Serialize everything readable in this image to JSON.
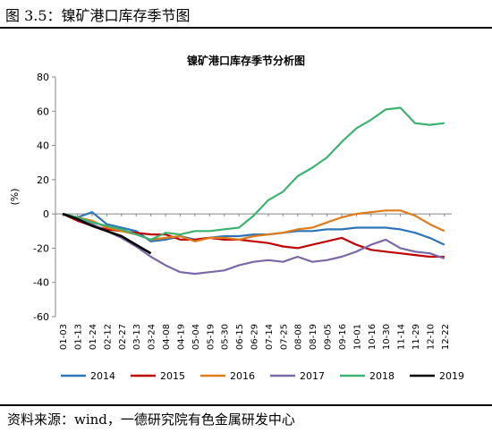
{
  "header": {
    "figure_caption": "图 3.5：镍矿港口库存季节图"
  },
  "footer": {
    "source": "资料来源：wind，一德研究院有色金属研发中心"
  },
  "chart_data": {
    "type": "line",
    "title": "镍矿港口库存季节分析图",
    "ylabel": "(%)",
    "xlabel": "",
    "ylim": [
      -60,
      80
    ],
    "yticks": [
      -60,
      -40,
      -20,
      0,
      20,
      40,
      60,
      80
    ],
    "grid": false,
    "legend_position": "bottom",
    "categories": [
      "01-03",
      "01-13",
      "01-24",
      "02-12",
      "02-27",
      "03-13",
      "03-24",
      "04-08",
      "04-19",
      "05-04",
      "05-19",
      "05-30",
      "06-15",
      "06-29",
      "07-14",
      "07-25",
      "08-08",
      "08-19",
      "09-05",
      "09-16",
      "10-01",
      "10-16",
      "10-30",
      "11-14",
      "11-29",
      "12-10",
      "12-22"
    ],
    "x": [
      "01-03",
      "01-13",
      "01-24",
      "02-12",
      "02-27",
      "03-13",
      "03-24",
      "04-08",
      "04-19",
      "05-04",
      "05-19",
      "05-30",
      "06-15",
      "06-29",
      "07-14",
      "07-25",
      "08-08",
      "08-19",
      "09-05",
      "09-16",
      "10-01",
      "10-16",
      "10-30",
      "11-14",
      "11-29",
      "12-10",
      "12-22"
    ],
    "series": [
      {
        "name": "2014",
        "color": "#2e75b6",
        "x": [
          "01-03",
          "01-13",
          "01-24",
          "02-12",
          "02-27",
          "03-13",
          "03-24",
          "04-08",
          "04-19",
          "05-04",
          "05-19",
          "05-30",
          "06-15",
          "06-29",
          "07-14",
          "07-25",
          "08-08",
          "08-19",
          "09-05",
          "09-16",
          "10-01",
          "10-16",
          "10-30",
          "11-14",
          "11-29",
          "12-10",
          "12-22"
        ],
        "values": [
          0,
          -2,
          1,
          -6,
          -8,
          -10,
          -16,
          -15,
          -13,
          -15,
          -14,
          -13,
          -13,
          -12,
          -12,
          -11,
          -10,
          -10,
          -9,
          -9,
          -8,
          -8,
          -8,
          -9,
          -11,
          -14,
          -18
        ]
      },
      {
        "name": "2015",
        "color": "#c00000",
        "x": [
          "01-03",
          "01-13",
          "01-24",
          "02-12",
          "02-27",
          "03-13",
          "03-24",
          "04-08",
          "04-19",
          "05-04",
          "05-19",
          "05-30",
          "06-15",
          "06-29",
          "07-14",
          "07-25",
          "08-08",
          "08-19",
          "09-05",
          "09-16",
          "10-01",
          "10-16",
          "10-30",
          "11-14",
          "11-29",
          "12-10",
          "12-22"
        ],
        "values": [
          0,
          -4,
          -7,
          -9,
          -10,
          -11,
          -12,
          -12,
          -15,
          -15,
          -14,
          -15,
          -15,
          -16,
          -17,
          -19,
          -20,
          -18,
          -16,
          -14,
          -18,
          -21,
          -22,
          -23,
          -24,
          -25,
          -25
        ]
      },
      {
        "name": "2016",
        "color": "#e07b1a",
        "x": [
          "01-03",
          "01-13",
          "01-24",
          "02-12",
          "02-27",
          "03-13",
          "03-24",
          "04-08",
          "04-19",
          "05-04",
          "05-19",
          "05-30",
          "06-15",
          "06-29",
          "07-14",
          "07-25",
          "08-08",
          "08-19",
          "09-05",
          "09-16",
          "10-01",
          "10-16",
          "10-30",
          "11-14",
          "11-29",
          "12-10",
          "12-22"
        ],
        "values": [
          0,
          -2,
          -4,
          -8,
          -10,
          -12,
          -15,
          -14,
          -13,
          -16,
          -14,
          -14,
          -15,
          -13,
          -12,
          -11,
          -9,
          -8,
          -5,
          -2,
          0,
          1,
          2,
          2,
          -1,
          -6,
          -10
        ]
      },
      {
        "name": "2017",
        "color": "#7b68a6",
        "x": [
          "01-03",
          "01-13",
          "01-24",
          "02-12",
          "02-27",
          "03-13",
          "03-24",
          "04-08",
          "04-19",
          "05-04",
          "05-19",
          "05-30",
          "06-15",
          "06-29",
          "07-14",
          "07-25",
          "08-08",
          "08-19",
          "09-05",
          "09-16",
          "10-01",
          "10-16",
          "10-30",
          "11-14",
          "11-29",
          "12-10",
          "12-22"
        ],
        "values": [
          0,
          -3,
          -6,
          -10,
          -14,
          -19,
          -25,
          -30,
          -34,
          -35,
          -34,
          -33,
          -30,
          -28,
          -27,
          -28,
          -25,
          -28,
          -27,
          -25,
          -22,
          -18,
          -15,
          -20,
          -22,
          -23,
          -26
        ]
      },
      {
        "name": "2018",
        "color": "#3cb371",
        "x": [
          "01-03",
          "01-13",
          "01-24",
          "02-12",
          "02-27",
          "03-13",
          "03-24",
          "04-08",
          "04-19",
          "05-04",
          "05-19",
          "05-30",
          "06-15",
          "06-29",
          "07-14",
          "07-25",
          "08-08",
          "08-19",
          "09-05",
          "09-16",
          "10-01",
          "10-16",
          "10-30",
          "11-14",
          "11-29",
          "12-10",
          "12-22"
        ],
        "values": [
          0,
          -2,
          -5,
          -7,
          -9,
          -12,
          -15,
          -11,
          -12,
          -10,
          -10,
          -9,
          -8,
          -1,
          8,
          13,
          22,
          27,
          33,
          42,
          50,
          55,
          61,
          62,
          53,
          52,
          53
        ]
      },
      {
        "name": "2019",
        "color": "#000000",
        "x": [
          "01-03",
          "01-13",
          "01-24",
          "02-12",
          "02-27",
          "03-13",
          "03-24"
        ],
        "values": [
          0,
          -3,
          -7,
          -10,
          -13,
          -18,
          -23
        ]
      }
    ]
  }
}
